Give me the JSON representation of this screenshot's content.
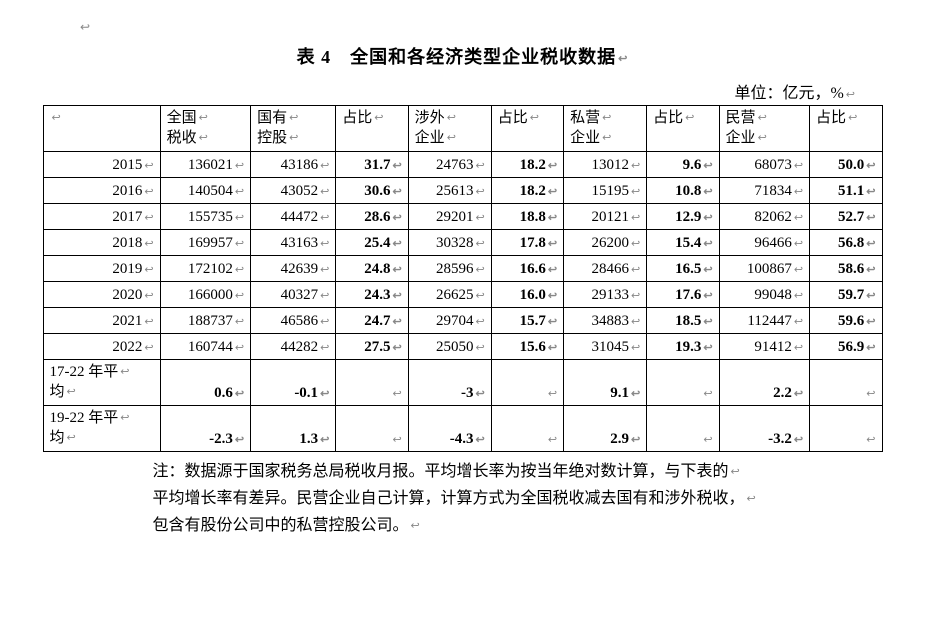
{
  "title": "表 4　全国和各经济类型企业税收数据",
  "unit": "单位：亿元，%",
  "returnGlyph": "↩",
  "table": {
    "columns": [
      {
        "l1": "",
        "l2": ""
      },
      {
        "l1": "全国",
        "l2": "税收"
      },
      {
        "l1": "国有",
        "l2": "控股"
      },
      {
        "l1": "",
        "l2": "占比"
      },
      {
        "l1": "涉外",
        "l2": "企业"
      },
      {
        "l1": "",
        "l2": "占比"
      },
      {
        "l1": "私营",
        "l2": "企业"
      },
      {
        "l1": "",
        "l2": "占比"
      },
      {
        "l1": "民营",
        "l2": "企业"
      },
      {
        "l1": "",
        "l2": "占比"
      }
    ],
    "rows": [
      {
        "label": "2015",
        "cells": [
          "136021",
          "43186",
          "31.7",
          "24763",
          "18.2",
          "13012",
          "9.6",
          "68073",
          "50.0"
        ],
        "bold": [
          false,
          false,
          true,
          false,
          true,
          false,
          true,
          false,
          true
        ]
      },
      {
        "label": "2016",
        "cells": [
          "140504",
          "43052",
          "30.6",
          "25613",
          "18.2",
          "15195",
          "10.8",
          "71834",
          "51.1"
        ],
        "bold": [
          false,
          false,
          true,
          false,
          true,
          false,
          true,
          false,
          true
        ]
      },
      {
        "label": "2017",
        "cells": [
          "155735",
          "44472",
          "28.6",
          "29201",
          "18.8",
          "20121",
          "12.9",
          "82062",
          "52.7"
        ],
        "bold": [
          false,
          false,
          true,
          false,
          true,
          false,
          true,
          false,
          true
        ]
      },
      {
        "label": "2018",
        "cells": [
          "169957",
          "43163",
          "25.4",
          "30328",
          "17.8",
          "26200",
          "15.4",
          "96466",
          "56.8"
        ],
        "bold": [
          false,
          false,
          true,
          false,
          true,
          false,
          true,
          false,
          true
        ]
      },
      {
        "label": "2019",
        "cells": [
          "172102",
          "42639",
          "24.8",
          "28596",
          "16.6",
          "28466",
          "16.5",
          "100867",
          "58.6"
        ],
        "bold": [
          false,
          false,
          true,
          false,
          true,
          false,
          true,
          false,
          true
        ]
      },
      {
        "label": "2020",
        "cells": [
          "166000",
          "40327",
          "24.3",
          "26625",
          "16.0",
          "29133",
          "17.6",
          "99048",
          "59.7"
        ],
        "bold": [
          false,
          false,
          true,
          false,
          true,
          false,
          true,
          false,
          true
        ]
      },
      {
        "label": "2021",
        "cells": [
          "188737",
          "46586",
          "24.7",
          "29704",
          "15.7",
          "34883",
          "18.5",
          "112447",
          "59.6"
        ],
        "bold": [
          false,
          false,
          true,
          false,
          true,
          false,
          true,
          false,
          true
        ]
      },
      {
        "label": "2022",
        "cells": [
          "160744",
          "44282",
          "27.5",
          "25050",
          "15.6",
          "31045",
          "19.3",
          "91412",
          "56.9"
        ],
        "bold": [
          false,
          false,
          true,
          false,
          true,
          false,
          true,
          false,
          true
        ]
      }
    ],
    "summaryRows": [
      {
        "label_l1": "17-22 年平",
        "label_l2": "均",
        "cells": [
          "0.6",
          "-0.1",
          "",
          "-3",
          "",
          "9.1",
          "",
          "2.2",
          ""
        ],
        "bold": [
          true,
          true,
          false,
          true,
          false,
          true,
          false,
          true,
          false
        ]
      },
      {
        "label_l1": "19-22 年平",
        "label_l2": "均",
        "cells": [
          "-2.3",
          "1.3",
          "",
          "-4.3",
          "",
          "2.9",
          "",
          "-3.2",
          ""
        ],
        "bold": [
          true,
          true,
          false,
          true,
          false,
          true,
          false,
          true,
          false
        ]
      }
    ]
  },
  "note": {
    "prefix": "注：",
    "lines": [
      "数据源于国家税务总局税收月报。平均增长率为按当年绝对数计算，与下表的",
      "平均增长率有差异。民营企业自己计算，计算方式为全国税收减去国有和涉外税收，",
      "包含有股份公司中的私营控股公司。"
    ]
  }
}
